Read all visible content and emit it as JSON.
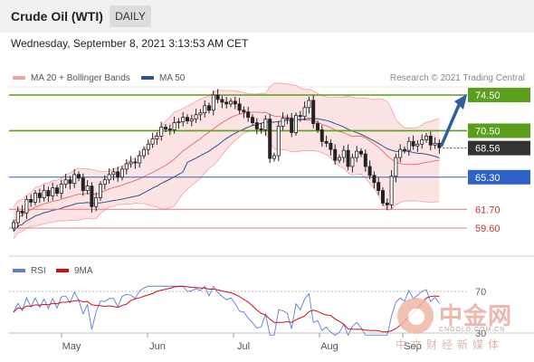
{
  "header": {
    "title": "Crude Oil (WTI)",
    "timeframe": "DAILY"
  },
  "datetime": "Wednesday, September 8, 2021 3:13:53 AM CET",
  "legend": {
    "bollinger_label": "MA 20 + Bollinger Bands",
    "ma50_label": "MA 50",
    "copyright": "Research © 2021 Trading Central"
  },
  "rsi_legend": {
    "rsi_label": "RSI",
    "ma_label": "9MA"
  },
  "colors": {
    "bollinger": "#f4a0a0",
    "bollinger_fill": "#fde1e1",
    "ma50": "#33508f",
    "bull_candle": "#ffffff",
    "bear_candle": "#222222",
    "resistance": "#5a9e1c",
    "support": "#2f62c9",
    "target_support": "#e57a7a",
    "arrow": "#2e5f9e",
    "rsi": "#5b7fd4",
    "rsi_ma": "#cc1111"
  },
  "chart_data": {
    "type": "candlestick",
    "title": "Crude Oil (WTI)",
    "timeframe": "DAILY",
    "x_tick_labels": [
      "May",
      "Jun",
      "Jul",
      "Aug",
      "Sep"
    ],
    "y_range": [
      57.5,
      76.5
    ],
    "levels": [
      {
        "value": 74.5,
        "label": "74.50",
        "kind": "resistance"
      },
      {
        "value": 70.5,
        "label": "70.50",
        "kind": "resistance"
      },
      {
        "value": 68.56,
        "label": "68.56",
        "kind": "last"
      },
      {
        "value": 65.3,
        "label": "65.30",
        "kind": "support"
      },
      {
        "value": 61.7,
        "label": "61.70",
        "kind": "target"
      },
      {
        "value": 59.6,
        "label": "59.60",
        "kind": "target"
      }
    ],
    "closes": [
      60.2,
      61.5,
      61.3,
      62.8,
      62.5,
      63.5,
      63.0,
      63.8,
      63.2,
      64.1,
      63.5,
      64.5,
      65.0,
      64.6,
      65.6,
      65.2,
      63.8,
      64.3,
      62.0,
      63.0,
      64.5,
      65.0,
      65.6,
      65.9,
      65.3,
      66.2,
      66.8,
      67.0,
      66.9,
      67.7,
      68.4,
      69.0,
      69.6,
      69.9,
      70.9,
      70.7,
      70.6,
      71.4,
      71.5,
      72.0,
      71.6,
      71.8,
      72.3,
      72.5,
      73.3,
      72.8,
      74.5,
      74.0,
      73.7,
      73.5,
      73.8,
      73.5,
      72.8,
      72.6,
      72.0,
      71.4,
      70.7,
      70.6,
      71.8,
      67.4,
      67.7,
      71.0,
      71.9,
      71.9,
      70.3,
      72.2,
      72.1,
      73.1,
      73.9,
      71.3,
      70.6,
      69.3,
      69.1,
      68.4,
      67.2,
      67.5,
      68.3,
      66.5,
      67.5,
      68.2,
      67.9,
      66.5,
      65.5,
      64.7,
      63.8,
      62.4,
      62.2,
      65.4,
      67.5,
      68.4,
      68.3,
      69.3,
      68.8,
      69.0,
      69.5,
      69.9,
      68.9,
      69.1,
      68.6
    ],
    "rsi_levels": [
      70,
      30
    ],
    "rsi_level_labels": [
      "70",
      "30"
    ]
  }
}
